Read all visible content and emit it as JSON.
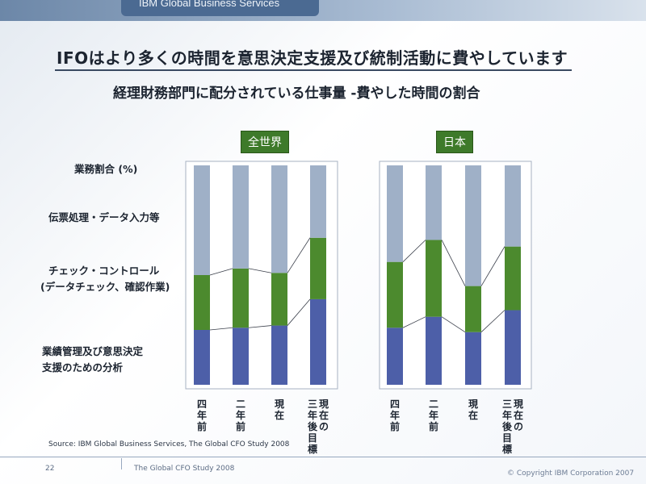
{
  "header": {
    "company": "IBM Global Business Services"
  },
  "slide": {
    "title": "IFOはより多くの時間を意思決定支援及び統制活動に費やしています",
    "subtitle": "経理財務部門に配分されている仕事量 -費やした時間の割合",
    "row_labels": {
      "axis": "業務割合 (%)",
      "top": "伝票処理・データ入力等",
      "middle_1": "チェック・コントロール",
      "middle_2": "(データチェック、確認作業)",
      "bottom_1": "業績管理及び意思決定",
      "bottom_2": "支援のための分析"
    },
    "source": "Source: IBM Global Business Services, The Global CFO Study 2008"
  },
  "footer": {
    "page": "22",
    "study": "The Global CFO Study 2008",
    "copyright": "© Copyright IBM Corporation 2007"
  },
  "colors": {
    "top": "#9fb0c7",
    "middle": "#4c8a2e",
    "bottom": "#4d5fa8"
  },
  "chart_data": [
    {
      "type": "bar",
      "stacked": true,
      "title": "全世界",
      "categories": [
        "四年前",
        "二年前",
        "現在",
        "現在の三年後目標"
      ],
      "ylim": [
        0,
        100
      ],
      "series": [
        {
          "name": "業績管理及び意思決定支援のための分析",
          "values": [
            25,
            26,
            27,
            39
          ]
        },
        {
          "name": "チェック・コントロール(データチェック、確認作業)",
          "values": [
            25,
            27,
            24,
            28
          ]
        },
        {
          "name": "伝票処理・データ入力等",
          "values": [
            50,
            47,
            49,
            33
          ]
        }
      ]
    },
    {
      "type": "bar",
      "stacked": true,
      "title": "日本",
      "categories": [
        "四年前",
        "二年前",
        "現在",
        "現在の三年後目標"
      ],
      "ylim": [
        0,
        100
      ],
      "series": [
        {
          "name": "業績管理及び意思決定支援のための分析",
          "values": [
            26,
            31,
            24,
            34
          ]
        },
        {
          "name": "チェック・コントロール(データチェック、確認作業)",
          "values": [
            30,
            35,
            21,
            29
          ]
        },
        {
          "name": "伝票処理・データ入力等",
          "values": [
            44,
            34,
            55,
            37
          ]
        }
      ]
    }
  ]
}
